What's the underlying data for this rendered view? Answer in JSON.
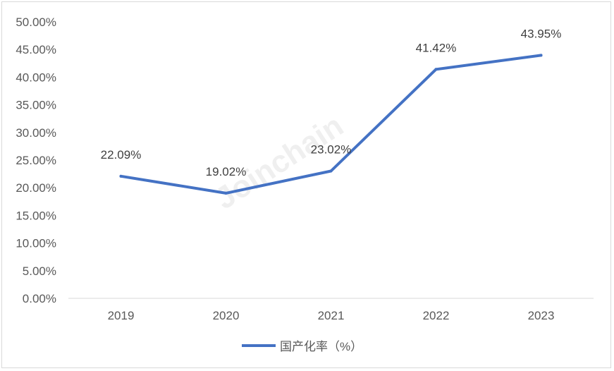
{
  "chart_data": {
    "type": "line",
    "title": "",
    "xlabel": "",
    "ylabel": "",
    "categories": [
      "2019",
      "2020",
      "2021",
      "2022",
      "2023"
    ],
    "series": [
      {
        "name": "国产化率（%）",
        "values": [
          22.09,
          19.02,
          23.02,
          41.42,
          43.95
        ],
        "labels": [
          "22.09%",
          "19.02%",
          "23.02%",
          "41.42%",
          "43.95%"
        ],
        "color": "#4472c4"
      }
    ],
    "ylim": [
      0,
      50
    ],
    "yticks": [
      0,
      5,
      10,
      15,
      20,
      25,
      30,
      35,
      40,
      45,
      50
    ],
    "ytick_labels": [
      "0.00%",
      "5.00%",
      "10.00%",
      "15.00%",
      "20.00%",
      "25.00%",
      "30.00%",
      "35.00%",
      "40.00%",
      "45.00%",
      "50.00%"
    ],
    "grid": false,
    "legend_position": "bottom",
    "watermark": "Joinchain"
  }
}
